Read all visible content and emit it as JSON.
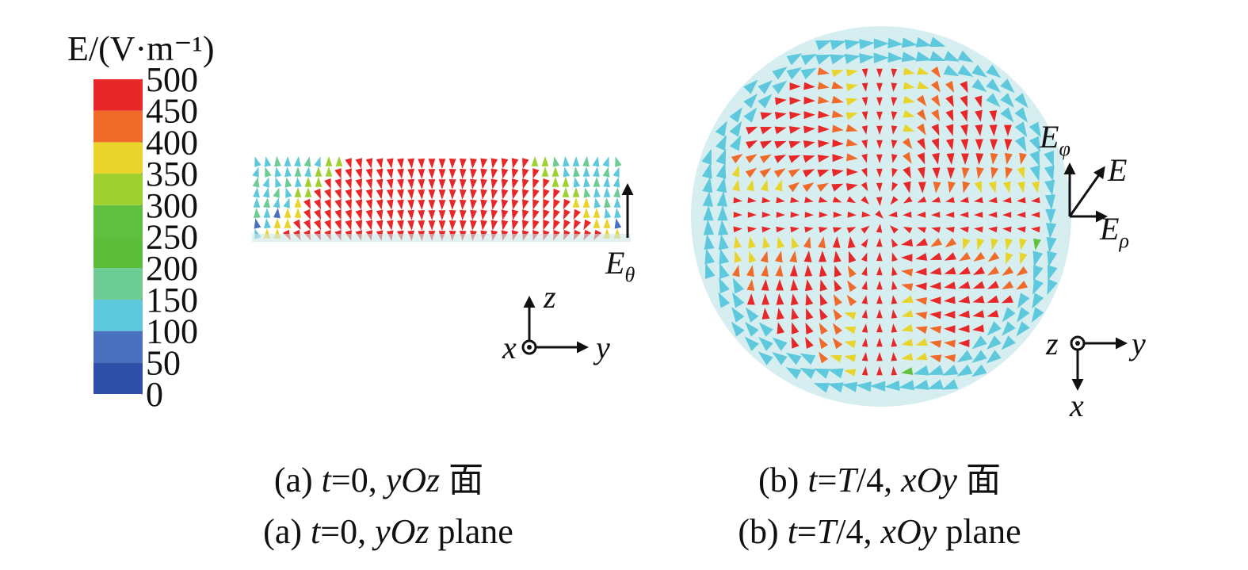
{
  "colorbar": {
    "title": "E/(V·m⁻¹)",
    "ticks": [
      0,
      50,
      100,
      150,
      200,
      250,
      300,
      350,
      400,
      450,
      500
    ],
    "colors": [
      "#2f4fa8",
      "#4a70c0",
      "#5ec8dc",
      "#6ccc94",
      "#5cbd3a",
      "#62c040",
      "#9ed030",
      "#e8d42a",
      "#f06a2a",
      "#e82828"
    ]
  },
  "panel_a": {
    "field_label": {
      "main": "E",
      "sub": "θ"
    },
    "axes": {
      "z": "z",
      "x": "x",
      "y": "y"
    },
    "caption_cn": [
      "(a) ",
      "t",
      "=0, ",
      "yOz",
      " 面"
    ],
    "caption_en": [
      "(a) ",
      "t",
      "=0, ",
      "yOz",
      " plane"
    ]
  },
  "panel_b": {
    "field_labels": [
      {
        "main": "E",
        "sub": "φ"
      },
      {
        "main": "E",
        "sub": ""
      },
      {
        "main": "E",
        "sub": "ρ"
      }
    ],
    "axes": {
      "z": "z",
      "x": "x",
      "y": "y"
    },
    "caption_cn": [
      "(b) ",
      "t",
      "=",
      "T",
      "/4, ",
      "xOy",
      " 面"
    ],
    "caption_en": [
      "(b) ",
      "t",
      "=",
      "T",
      "/4, ",
      "xOy",
      " plane"
    ]
  }
}
